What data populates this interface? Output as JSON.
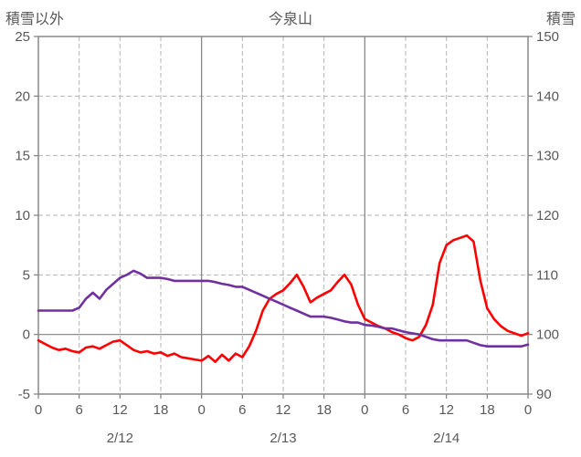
{
  "header": {
    "left_axis_title": "積雪以外",
    "title": "今泉山",
    "right_axis_title": "積雪"
  },
  "style": {
    "red_series_color": "#ff0000",
    "purple_series_color": "#7030a0",
    "grid_color": "#b3b3b3",
    "frame_color": "#808080",
    "text_color": "#595959",
    "background": "#ffffff"
  },
  "chart_data": {
    "type": "line",
    "title": "今泉山",
    "x_start_hour": 0,
    "x_step_hours": 1,
    "x_range_hours": [
      0,
      72
    ],
    "x_tick_hours": [
      0,
      6,
      12,
      18,
      24,
      30,
      36,
      42,
      48,
      54,
      60,
      66,
      72
    ],
    "x_tick_labels": [
      "0",
      "6",
      "12",
      "18",
      "0",
      "6",
      "12",
      "18",
      "0",
      "6",
      "12",
      "18",
      "0"
    ],
    "day_boundary_hours": [
      24,
      48
    ],
    "date_labels": [
      {
        "label": "2/12",
        "hour": 12
      },
      {
        "label": "2/13",
        "hour": 36
      },
      {
        "label": "2/14",
        "hour": 60
      }
    ],
    "left_axis": {
      "title": "積雪以外",
      "min": -5,
      "max": 25,
      "ticks": [
        25,
        20,
        15,
        10,
        5,
        0,
        -5
      ]
    },
    "right_axis": {
      "title": "積雪",
      "min": 90,
      "max": 150,
      "ticks": [
        150,
        140,
        130,
        120,
        110,
        100,
        90
      ]
    },
    "zero_line_left_value": 0,
    "grid": true,
    "legend": "none",
    "series": [
      {
        "key": "other-than-snow",
        "name": "積雪以外",
        "axis": "left",
        "color": "#ff0000",
        "values": [
          -0.5,
          -0.8,
          -1.1,
          -1.3,
          -1.2,
          -1.4,
          -1.5,
          -1.1,
          -1.0,
          -1.2,
          -0.9,
          -0.6,
          -0.5,
          -0.9,
          -1.3,
          -1.5,
          -1.4,
          -1.6,
          -1.5,
          -1.8,
          -1.6,
          -1.9,
          -2.0,
          -2.1,
          -2.2,
          -1.8,
          -2.3,
          -1.7,
          -2.2,
          -1.6,
          -1.9,
          -1.0,
          0.3,
          2.0,
          3.0,
          3.4,
          3.7,
          4.3,
          5.0,
          4.0,
          2.7,
          3.1,
          3.4,
          3.7,
          4.4,
          5.0,
          4.2,
          2.5,
          1.3,
          1.0,
          0.7,
          0.5,
          0.2,
          0.0,
          -0.3,
          -0.5,
          -0.2,
          0.8,
          2.5,
          6.0,
          7.5,
          7.9,
          8.1,
          8.3,
          7.8,
          4.5,
          2.2,
          1.3,
          0.7,
          0.3,
          0.1,
          -0.1,
          0.1
        ]
      },
      {
        "key": "snow-depth",
        "name": "積雪",
        "axis": "right",
        "color": "#7030a0",
        "values": [
          104,
          104,
          104,
          104,
          104,
          104,
          104.5,
          106,
          107,
          106,
          107.5,
          108.5,
          109.5,
          110,
          110.7,
          110.2,
          109.5,
          109.5,
          109.5,
          109.3,
          109,
          109,
          109,
          109,
          109,
          109,
          108.8,
          108.5,
          108.3,
          108,
          108,
          107.5,
          107,
          106.5,
          106,
          105.5,
          105,
          104.5,
          104,
          103.5,
          103,
          103,
          103,
          102.8,
          102.5,
          102.2,
          102,
          102,
          101.6,
          101.5,
          101.3,
          101,
          101,
          100.7,
          100.4,
          100.2,
          100,
          99.6,
          99.2,
          99,
          99,
          99,
          99,
          99,
          98.6,
          98.2,
          98,
          98,
          98,
          98,
          98,
          98,
          98.3
        ]
      }
    ]
  }
}
